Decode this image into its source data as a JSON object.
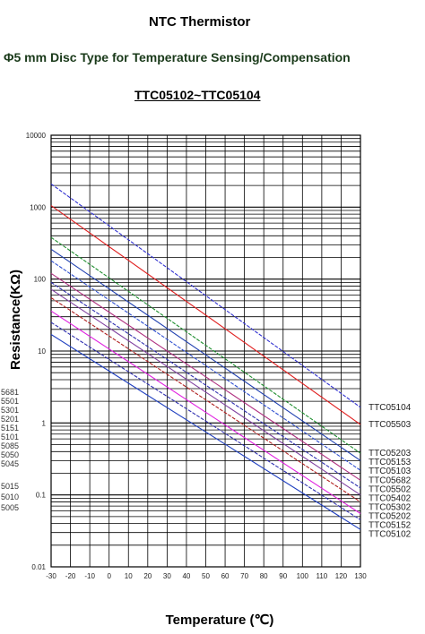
{
  "header": {
    "title": "NTC Thermistor",
    "subtitle": "Φ5 mm Disc Type for Temperature Sensing/Compensation",
    "heading": "TTC05102~TTC05104"
  },
  "chart_data": {
    "type": "line",
    "title": "TTC05102~TTC05104",
    "xlabel": "Temperature (℃)",
    "ylabel": "Resistance(KΩ)",
    "xlim": [
      -30,
      130
    ],
    "ylim": [
      0.01,
      10000
    ],
    "yscale": "log",
    "grid": true,
    "x_ticks": [
      -30,
      -20,
      -10,
      0,
      10,
      20,
      30,
      40,
      50,
      60,
      70,
      80,
      90,
      100,
      110,
      120,
      130
    ],
    "y_ticks": [
      0.01,
      0.1,
      1,
      10,
      100,
      1000,
      10000
    ],
    "y_tick_labels": [
      "0.01",
      "0.1",
      "1",
      "10",
      "100",
      "1000",
      "10000"
    ],
    "x": [
      -30,
      130
    ],
    "series": [
      {
        "name": "TTC05104",
        "color": "#3030d0",
        "values": [
          2100,
          1.65
        ]
      },
      {
        "name": "TTC05503",
        "color": "#e02020",
        "values": [
          1050,
          0.95
        ]
      },
      {
        "name": "TTC05203",
        "color": "#1f8f2f",
        "values": [
          380,
          0.38
        ]
      },
      {
        "name": "TTC05153",
        "color": "#2040b0",
        "values": [
          260,
          0.3
        ]
      },
      {
        "name": "TTC05103",
        "color": "#3050d0",
        "values": [
          180,
          0.22
        ]
      },
      {
        "name": "TTC05682",
        "color": "#b03080",
        "values": [
          120,
          0.16
        ]
      },
      {
        "name": "TTC05502",
        "color": "#3030b0",
        "values": [
          90,
          0.125
        ]
      },
      {
        "name": "TTC05402",
        "color": "#8040a0",
        "values": [
          72,
          0.1
        ]
      },
      {
        "name": "TTC05302",
        "color": "#b02020",
        "values": [
          55,
          0.08
        ]
      },
      {
        "name": "TTC05202",
        "color": "#e020e0",
        "values": [
          36,
          0.055
        ]
      },
      {
        "name": "TTC05152",
        "color": "#3030b0",
        "values": [
          25,
          0.045
        ]
      },
      {
        "name": "TTC05102",
        "color": "#2040c0",
        "values": [
          17,
          0.033
        ]
      }
    ],
    "left_labels": [
      "5681",
      "5501",
      "5301",
      "5201",
      "5151",
      "5101",
      "5085",
      "5050",
      "5045",
      "5015",
      "5010",
      "5005"
    ]
  }
}
